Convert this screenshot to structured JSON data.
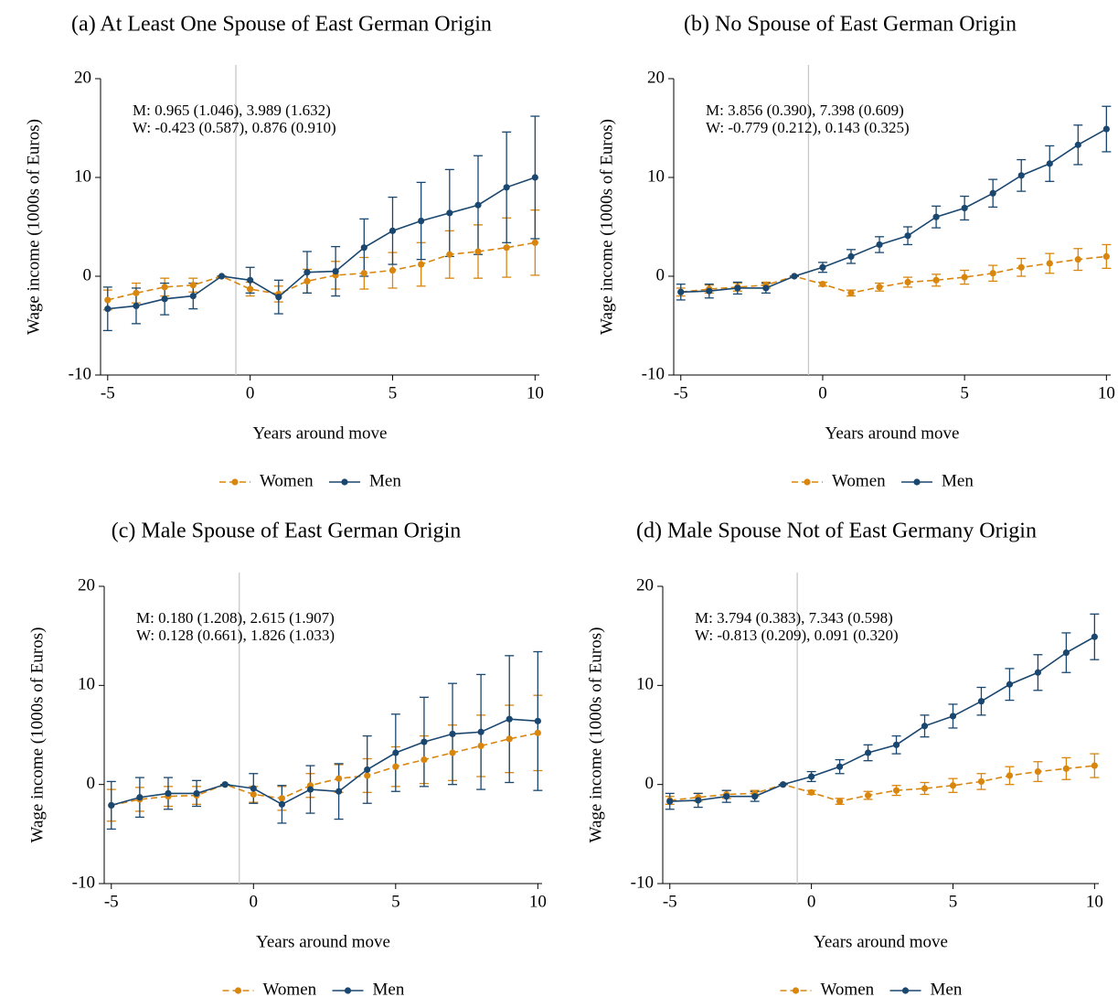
{
  "chart_data": [
    {
      "type": "line",
      "title": "(a) At Least One Spouse of East German Origin",
      "annotations": [
        "M: 0.965 (1.046), 3.989 (1.632)",
        "W: -0.423 (0.587), 0.876 (0.910)"
      ],
      "x_label": "Years around move",
      "y_label": "Wage income (1000s of Euros)",
      "x": [
        -5,
        -4,
        -3,
        -2,
        -1,
        0,
        1,
        2,
        3,
        4,
        5,
        6,
        7,
        8,
        9,
        10
      ],
      "xlim": [
        -5.25,
        10.15
      ],
      "xticks": [
        -5,
        0,
        5,
        10
      ],
      "ylim": [
        -10,
        20
      ],
      "yticks": [
        -10,
        0,
        10,
        20
      ],
      "reference_line_x": -0.5,
      "series": [
        {
          "name": "Women",
          "color": "#d9860f",
          "dashed": true,
          "values": [
            -2.4,
            -1.7,
            -1.1,
            -0.9,
            0,
            -1.3,
            -1.8,
            -0.5,
            0.1,
            0.3,
            0.6,
            1.2,
            2.2,
            2.5,
            2.9,
            3.4
          ],
          "errors": [
            1.0,
            1.0,
            0.9,
            0.7,
            0,
            0.7,
            0.8,
            1.2,
            1.4,
            1.6,
            1.8,
            2.2,
            2.4,
            2.7,
            3.0,
            3.3
          ]
        },
        {
          "name": "Men",
          "color": "#1a476f",
          "dashed": false,
          "values": [
            -3.3,
            -3.0,
            -2.3,
            -2.0,
            0,
            -0.4,
            -2.1,
            0.4,
            0.5,
            2.9,
            4.6,
            5.6,
            6.4,
            7.2,
            9.0,
            10.0
          ],
          "errors": [
            2.2,
            1.8,
            1.6,
            1.3,
            0,
            1.3,
            1.7,
            2.1,
            2.5,
            2.9,
            3.4,
            3.9,
            4.4,
            5.0,
            5.6,
            6.2
          ]
        }
      ]
    },
    {
      "type": "line",
      "title": "(b) No Spouse of East German Origin",
      "annotations": [
        "M: 3.856 (0.390), 7.398 (0.609)",
        "W: -0.779 (0.212), 0.143 (0.325)"
      ],
      "x_label": "Years around move",
      "y_label": "Wage income (1000s of Euros)",
      "x": [
        -5,
        -4,
        -3,
        -2,
        -1,
        0,
        1,
        2,
        3,
        4,
        5,
        6,
        7,
        8,
        9,
        10
      ],
      "xlim": [
        -5.25,
        10.15
      ],
      "xticks": [
        -5,
        0,
        5,
        10
      ],
      "ylim": [
        -10,
        20
      ],
      "yticks": [
        -10,
        0,
        10,
        20
      ],
      "reference_line_x": -0.5,
      "series": [
        {
          "name": "Women",
          "color": "#d9860f",
          "dashed": true,
          "values": [
            -1.6,
            -1.3,
            -1.1,
            -0.9,
            0,
            -0.8,
            -1.7,
            -1.1,
            -0.6,
            -0.4,
            -0.1,
            0.3,
            0.9,
            1.3,
            1.7,
            2.0
          ],
          "errors": [
            0.4,
            0.4,
            0.4,
            0.3,
            0,
            0.2,
            0.3,
            0.4,
            0.5,
            0.6,
            0.7,
            0.8,
            0.9,
            1.0,
            1.1,
            1.2
          ]
        },
        {
          "name": "Men",
          "color": "#1a476f",
          "dashed": false,
          "values": [
            -1.6,
            -1.5,
            -1.2,
            -1.2,
            0,
            0.9,
            2.0,
            3.2,
            4.1,
            6.0,
            6.9,
            8.4,
            10.2,
            11.4,
            13.3,
            14.9
          ],
          "errors": [
            0.8,
            0.7,
            0.6,
            0.5,
            0,
            0.5,
            0.7,
            0.8,
            0.9,
            1.1,
            1.2,
            1.4,
            1.6,
            1.8,
            2.0,
            2.3
          ]
        }
      ]
    },
    {
      "type": "line",
      "title": "(c) Male Spouse of East German Origin",
      "annotations": [
        "M: 0.180 (1.208), 2.615 (1.907)",
        "W: 0.128 (0.661), 1.826 (1.033)"
      ],
      "x_label": "Years around move",
      "y_label": "Wage income (1000s of Euros)",
      "x": [
        -5,
        -4,
        -3,
        -2,
        -1,
        0,
        1,
        2,
        3,
        4,
        5,
        6,
        7,
        8,
        9,
        10
      ],
      "xlim": [
        -5.25,
        10.15
      ],
      "xticks": [
        -5,
        0,
        5,
        10
      ],
      "ylim": [
        -10,
        20
      ],
      "yticks": [
        -10,
        0,
        10,
        20
      ],
      "reference_line_x": -0.5,
      "series": [
        {
          "name": "Women",
          "color": "#d9860f",
          "dashed": true,
          "values": [
            -2.1,
            -1.5,
            -1.2,
            -1.1,
            0,
            -1.0,
            -1.4,
            -0.1,
            0.6,
            0.9,
            1.8,
            2.5,
            3.2,
            3.9,
            4.6,
            5.2
          ],
          "errors": [
            1.6,
            1.2,
            1.0,
            0.9,
            0,
            0.8,
            1.2,
            1.2,
            1.4,
            1.7,
            2.0,
            2.4,
            2.8,
            3.1,
            3.4,
            3.8
          ]
        },
        {
          "name": "Men",
          "color": "#1a476f",
          "dashed": false,
          "values": [
            -2.1,
            -1.3,
            -0.9,
            -0.9,
            0,
            -0.4,
            -2.0,
            -0.5,
            -0.7,
            1.5,
            3.2,
            4.3,
            5.1,
            5.3,
            6.6,
            6.4
          ],
          "errors": [
            2.4,
            2.0,
            1.6,
            1.3,
            0,
            1.5,
            1.9,
            2.4,
            2.8,
            3.4,
            3.9,
            4.5,
            5.1,
            5.8,
            6.4,
            7.0
          ]
        }
      ]
    },
    {
      "type": "line",
      "title": "(d) Male Spouse Not of East Germany Origin",
      "annotations": [
        "M: 3.794 (0.383), 7.343 (0.598)",
        "W: -0.813 (0.209), 0.091 (0.320)"
      ],
      "x_label": "Years around move",
      "y_label": "Wage income (1000s of Euros)",
      "x": [
        -5,
        -4,
        -3,
        -2,
        -1,
        0,
        1,
        2,
        3,
        4,
        5,
        6,
        7,
        8,
        9,
        10
      ],
      "xlim": [
        -5.25,
        10.15
      ],
      "xticks": [
        -5,
        0,
        5,
        10
      ],
      "ylim": [
        -10,
        20
      ],
      "yticks": [
        -10,
        0,
        10,
        20
      ],
      "reference_line_x": -0.5,
      "series": [
        {
          "name": "Women",
          "color": "#d9860f",
          "dashed": true,
          "values": [
            -1.6,
            -1.3,
            -1.0,
            -0.9,
            0,
            -0.8,
            -1.7,
            -1.1,
            -0.6,
            -0.4,
            -0.1,
            0.3,
            0.9,
            1.3,
            1.6,
            1.9
          ],
          "errors": [
            0.4,
            0.4,
            0.4,
            0.3,
            0,
            0.2,
            0.3,
            0.4,
            0.5,
            0.6,
            0.7,
            0.8,
            0.9,
            1.0,
            1.1,
            1.2
          ]
        },
        {
          "name": "Men",
          "color": "#1a476f",
          "dashed": false,
          "values": [
            -1.7,
            -1.6,
            -1.2,
            -1.2,
            0,
            0.8,
            1.8,
            3.2,
            4.0,
            5.9,
            6.9,
            8.4,
            10.1,
            11.3,
            13.3,
            14.9
          ],
          "errors": [
            0.8,
            0.7,
            0.6,
            0.5,
            0,
            0.5,
            0.7,
            0.8,
            0.9,
            1.1,
            1.2,
            1.4,
            1.6,
            1.8,
            2.0,
            2.3
          ]
        }
      ]
    }
  ]
}
